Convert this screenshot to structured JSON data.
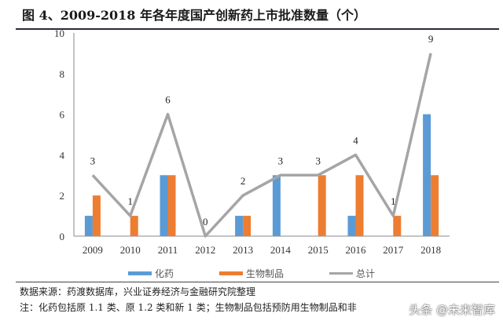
{
  "title": "图 4、2009-2018 年各年度国产创新药上市批准数量（个）",
  "chart_data": {
    "type": "bar",
    "categories": [
      "2009",
      "2010",
      "2011",
      "2012",
      "2013",
      "2014",
      "2015",
      "2016",
      "2017",
      "2018"
    ],
    "series": [
      {
        "name": "化药",
        "kind": "bar",
        "color": "#5b9bd5",
        "values": [
          1,
          0,
          3,
          0,
          1,
          3,
          0,
          1,
          0,
          6
        ]
      },
      {
        "name": "生物制品",
        "kind": "bar",
        "color": "#ed7d31",
        "values": [
          2,
          1,
          3,
          0,
          1,
          0,
          3,
          3,
          1,
          3
        ]
      },
      {
        "name": "总计",
        "kind": "line",
        "color": "#a5a5a5",
        "values": [
          3,
          1,
          6,
          0,
          2,
          3,
          3,
          4,
          1,
          9
        ],
        "data_labels": true
      }
    ],
    "ylim": [
      0,
      10
    ],
    "yticks": [
      "0",
      "2",
      "4",
      "6",
      "8",
      "10"
    ],
    "grid": false,
    "legend": "bottom"
  },
  "source": "数据来源：药渡数据库，兴业证券经济与金融研究院整理",
  "note": "注：化药包括原 1.1 类、原 1.2 类和新 1 类；生物制品包括预防用生物制品和非",
  "watermark": "头条 @未来智库"
}
